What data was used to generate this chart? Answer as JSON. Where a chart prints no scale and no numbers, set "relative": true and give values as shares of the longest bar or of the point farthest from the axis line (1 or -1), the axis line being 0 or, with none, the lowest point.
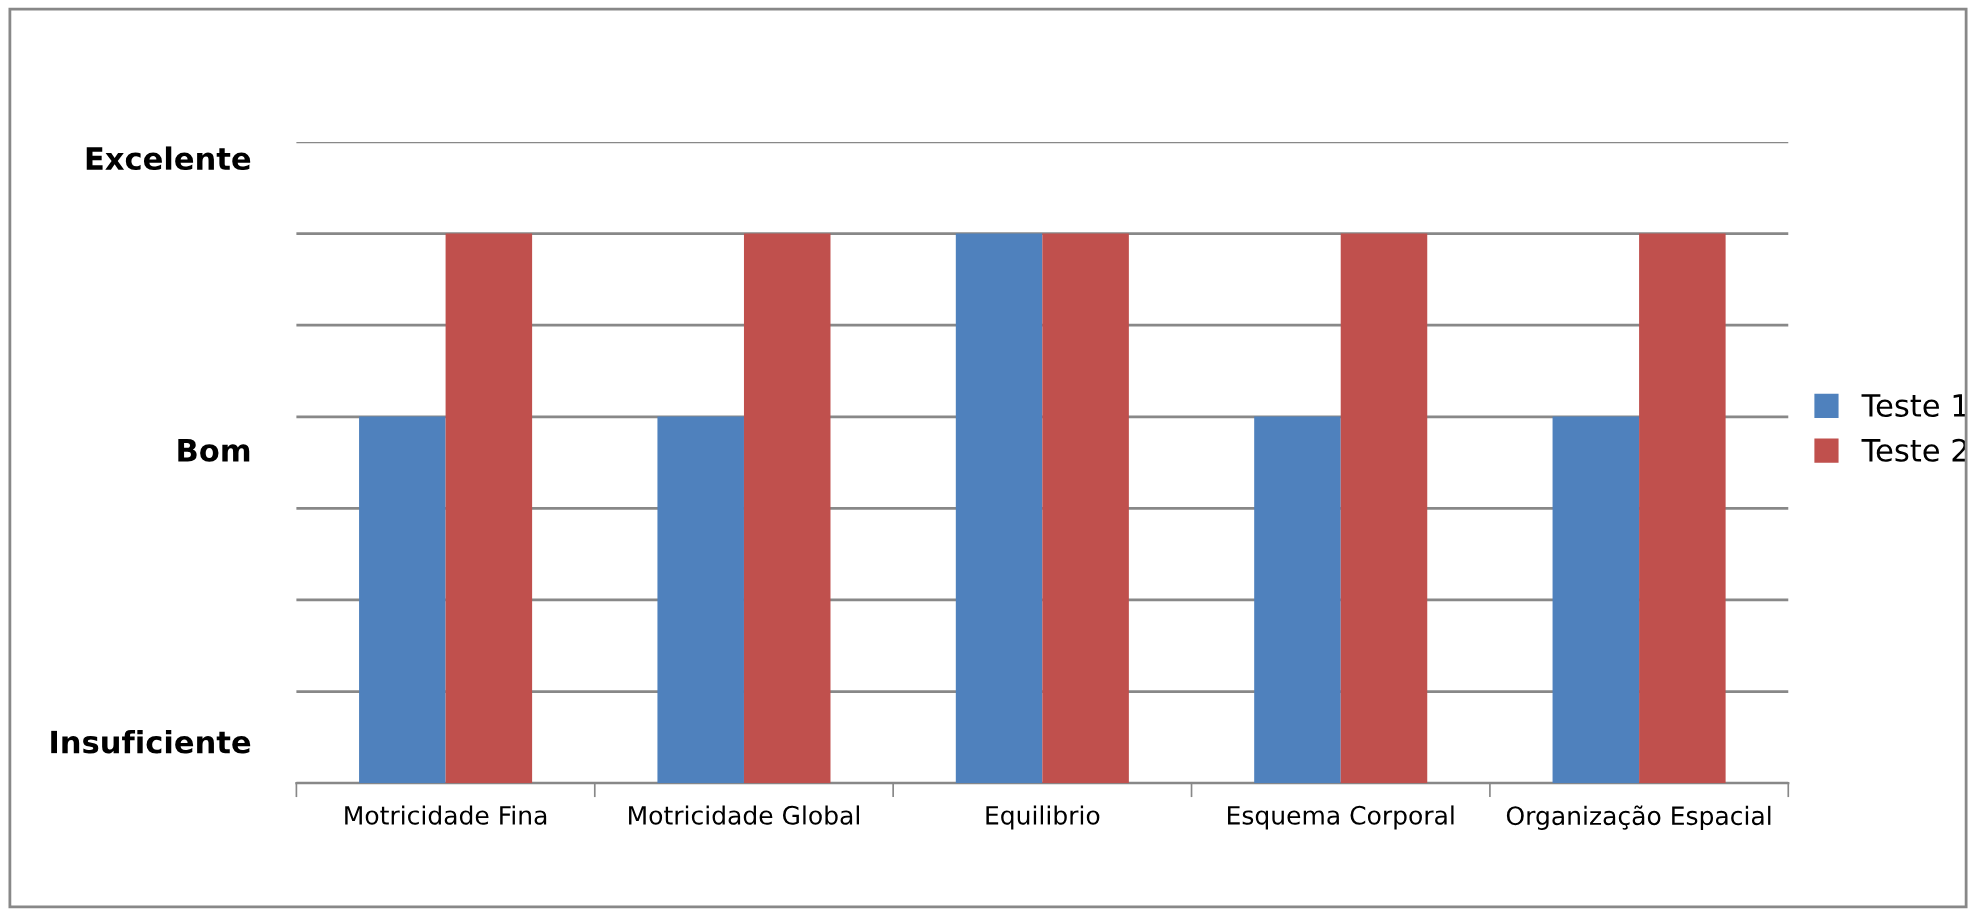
{
  "chart_data": {
    "type": "bar",
    "categories": [
      "Motricidade Fina",
      "Motricidade Global",
      "Equilibrio",
      "Esquema Corporal",
      "Organização Espacial"
    ],
    "series": [
      {
        "name": "Teste 1",
        "color": "#4f81bd",
        "values": [
          0.667,
          0.667,
          1,
          0.667,
          0.667
        ]
      },
      {
        "name": "Teste 2",
        "color": "#c0504d",
        "values": [
          1,
          1,
          1,
          1,
          1
        ]
      }
    ],
    "relative": true,
    "annotations": [
      "Insuficiente",
      "Bom",
      "Excelente"
    ],
    "grid": "y",
    "legend": "right"
  }
}
